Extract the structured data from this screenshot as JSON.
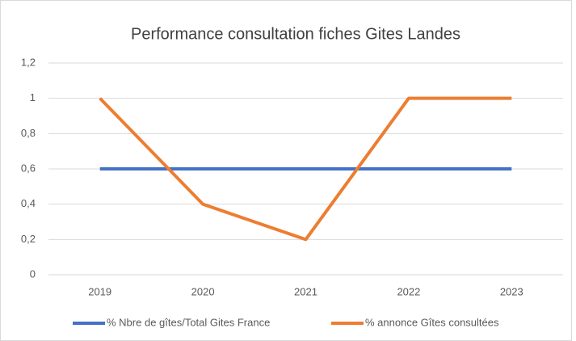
{
  "chart_data": {
    "type": "line",
    "title": "Performance consultation fiches Gites Landes",
    "categories": [
      "2019",
      "2020",
      "2021",
      "2022",
      "2023"
    ],
    "series": [
      {
        "name": "% Nbre de gîtes/Total Gites France",
        "color": "#4472c4",
        "values": [
          0.6,
          0.6,
          0.6,
          0.6,
          0.6
        ]
      },
      {
        "name": "% annonce Gîtes consultées",
        "color": "#ed7d31",
        "values": [
          1,
          0.4,
          0.2,
          1,
          1
        ]
      }
    ],
    "ylim": [
      0,
      1.2
    ],
    "yticks": [
      0,
      {
        "value": 0.2,
        "label": "0,2"
      },
      {
        "value": 0.4,
        "label": "0,4"
      },
      {
        "value": 0.6,
        "label": "0,6"
      },
      {
        "value": 0.8,
        "label": "0,8"
      },
      1,
      {
        "value": 1.2,
        "label": "1,2"
      }
    ],
    "grid": true,
    "legend": "bottom"
  }
}
